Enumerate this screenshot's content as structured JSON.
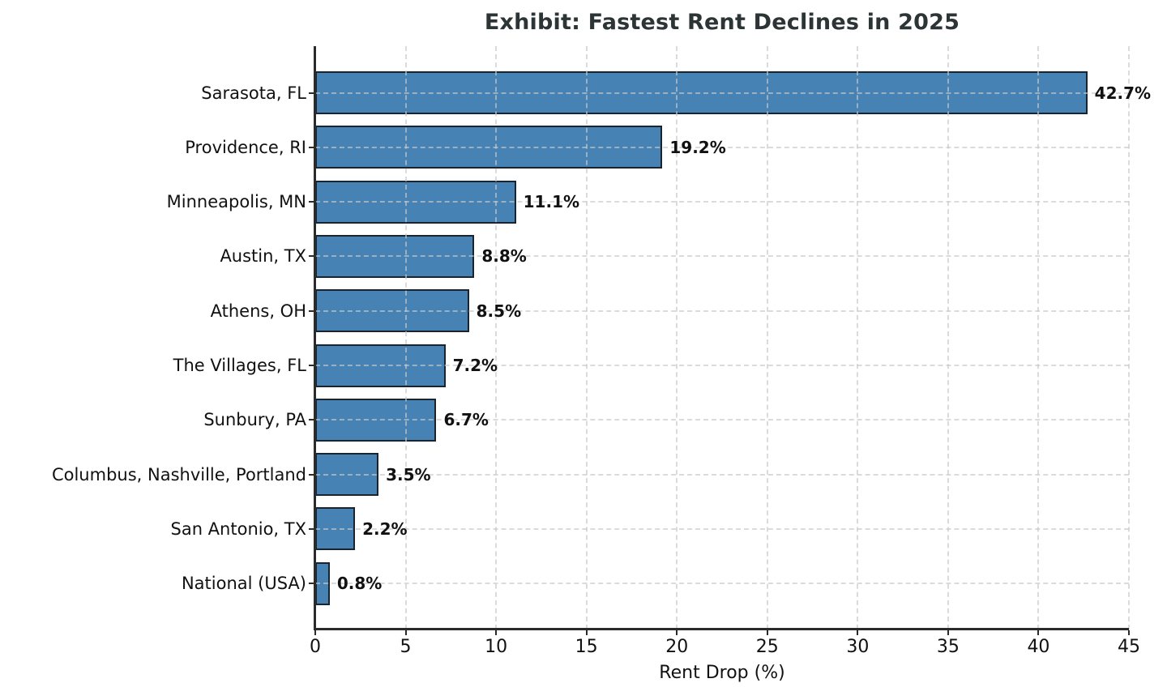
{
  "chart_data": {
    "type": "bar",
    "orientation": "horizontal",
    "title": "Exhibit: Fastest Rent Declines in 2025",
    "xlabel": "Rent Drop (%)",
    "ylabel": "",
    "categories": [
      "Sarasota, FL",
      "Providence, RI",
      "Minneapolis, MN",
      "Austin, TX",
      "Athens, OH",
      "The Villages, FL",
      "Sunbury, PA",
      "Columbus, Nashville, Portland",
      "San Antonio, TX",
      "National (USA)"
    ],
    "values": [
      42.7,
      19.2,
      11.1,
      8.8,
      8.5,
      7.2,
      6.7,
      3.5,
      2.2,
      0.8
    ],
    "value_labels": [
      "42.7%",
      "19.2%",
      "11.1%",
      "8.8%",
      "8.5%",
      "7.2%",
      "6.7%",
      "3.5%",
      "2.2%",
      "0.8%"
    ],
    "xlim": [
      0,
      45
    ],
    "xticks": [
      0,
      5,
      10,
      15,
      20,
      25,
      30,
      35,
      40,
      45
    ],
    "grid": true,
    "grid_style": "dashed",
    "legend": "none",
    "colors": {
      "bar_fill": "#4682b4",
      "bar_edge": "#1a242f",
      "grid": "#c9c9c9",
      "spine": "#2b2b2b",
      "title": "#2d3436",
      "text": "#111111"
    }
  }
}
